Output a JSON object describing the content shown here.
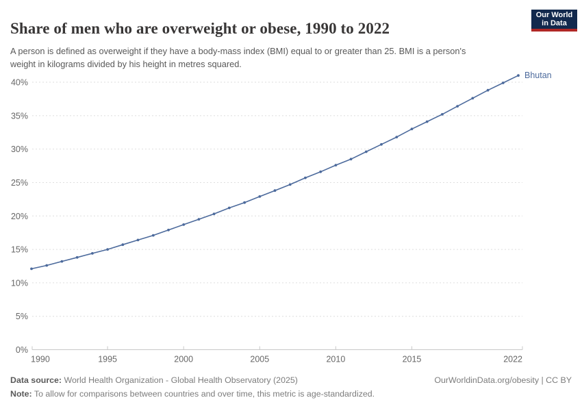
{
  "header": {
    "title": "Share of men who are overweight or obese, 1990 to 2022",
    "subtitle": "A person is defined as overweight if they have a body-mass index (BMI) equal to or greater than 25. BMI is a person's weight in kilograms divided by his height in metres squared."
  },
  "logo": {
    "line1": "Our World",
    "line2": "in Data",
    "bg_color": "#12294d",
    "accent_color": "#b02725"
  },
  "chart_data": {
    "type": "line",
    "title": "Share of men who are overweight or obese, 1990 to 2022",
    "xlabel": "",
    "ylabel": "",
    "unit": "%",
    "x": [
      1990,
      1991,
      1992,
      1993,
      1994,
      1995,
      1996,
      1997,
      1998,
      1999,
      2000,
      2001,
      2002,
      2003,
      2004,
      2005,
      2006,
      2007,
      2008,
      2009,
      2010,
      2011,
      2012,
      2013,
      2014,
      2015,
      2016,
      2017,
      2018,
      2019,
      2020,
      2021,
      2022
    ],
    "series": [
      {
        "name": "Bhutan",
        "color": "#4c6a9c",
        "values": [
          12.1,
          12.6,
          13.2,
          13.8,
          14.4,
          15.0,
          15.7,
          16.4,
          17.1,
          17.9,
          18.7,
          19.5,
          20.3,
          21.2,
          22.0,
          22.9,
          23.8,
          24.7,
          25.7,
          26.6,
          27.6,
          28.5,
          29.6,
          30.7,
          31.8,
          33.0,
          34.1,
          35.2,
          36.4,
          37.6,
          38.8,
          39.9,
          41.0
        ]
      }
    ],
    "xticks": [
      1990,
      1995,
      2000,
      2005,
      2010,
      2015,
      2022
    ],
    "yticks": [
      0,
      5,
      10,
      15,
      20,
      25,
      30,
      35,
      40
    ],
    "ytick_suffix": "%",
    "ylim": [
      0,
      40
    ],
    "xlim": [
      1990,
      2022
    ],
    "grid": "horizontal-dashed",
    "legend_position": "end-of-line",
    "marker": "circle"
  },
  "footer": {
    "datasource_label": "Data source:",
    "datasource_text": " World Health Organization - Global Health Observatory (2025)",
    "link": "OurWorldinData.org/obesity | CC BY",
    "note_label": "Note:",
    "note_text": " To allow for comparisons between countries and over time, this metric is age-standardized."
  }
}
